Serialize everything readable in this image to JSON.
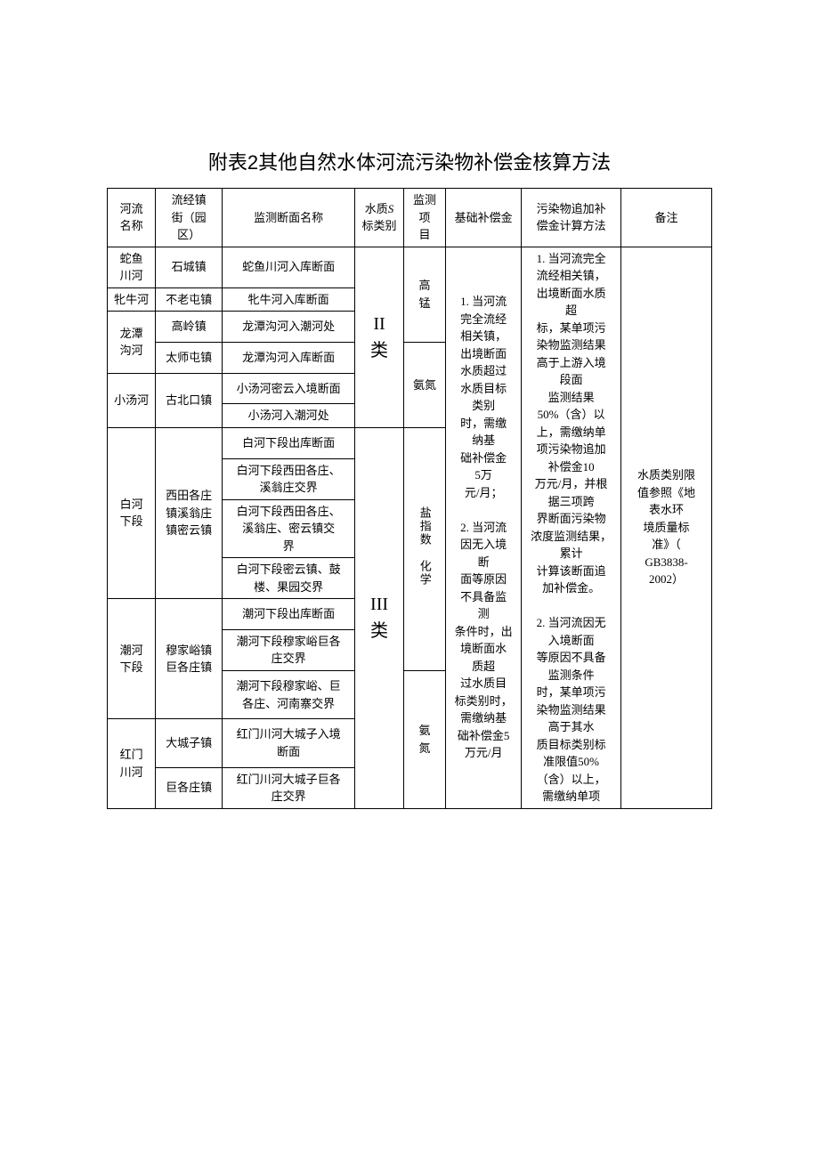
{
  "title": "附表2其他自然水体河流污染物补偿金核算方法",
  "columns": {
    "c1": "河流\n名称",
    "c2": "流经镇\n街（园\n区）",
    "c3": "监测断面名称",
    "c4_a": "水质",
    "c4_b": "S",
    "c4_c": "标类别",
    "c5": "监测项\n目",
    "c6": "基础补偿金",
    "c7": "污染物追加补\n偿金计算方法",
    "c8": "备注"
  },
  "river1": {
    "name": "蛇鱼\n川河",
    "town": "石城镇",
    "section": "蛇鱼川河入库断面"
  },
  "river2": {
    "name": "牝牛河",
    "town": "不老屯镇",
    "section": "牝牛河入库断面"
  },
  "river3": {
    "name": "龙潭\n沟河",
    "town_a": "高岭镇",
    "section_a": "龙潭沟河入潮河处",
    "town_b": "太师屯镇",
    "section_b": "龙潭沟河入库断面"
  },
  "river4": {
    "name": "小汤河",
    "town": "古北口镇",
    "section_a": "小汤河密云入境断面",
    "section_b": "小汤河入潮河处"
  },
  "river5": {
    "name": "白河\n下段",
    "town": "西田各庄\n镇溪翁庄\n镇密云镇",
    "section_a": "白河下段出库断面",
    "section_b": "白河下段西田各庄、\n溪翁庄交界",
    "section_c": "白河下段西田各庄、\n溪翁庄、密云镇交\n界",
    "section_d": "白河下段密云镇、鼓\n楼、果园交界"
  },
  "river6": {
    "name": "潮河\n下段",
    "town": "穆家峪镇\n巨各庄镇",
    "section_a": "潮河下段出库断面",
    "section_b": "潮河下段穆家峪巨各\n庄交界",
    "section_c": "潮河下段穆家峪、巨\n各庄、河南寨交界"
  },
  "river7": {
    "name": "红门\n川河",
    "town_a": "大城子镇",
    "section_a": "红门川河大城子入境\n断面",
    "town_b": "巨各庄镇",
    "section_b": "红门川河大城子巨各\n庄交界"
  },
  "wq": {
    "II": "II\n类",
    "III": "III\n类"
  },
  "monitor": {
    "gaomeng": "高\n锰",
    "andan": "氨氮",
    "yanzhishu_huaxue": "盐指数　化学",
    "andan2": "氨\n氮"
  },
  "base_comp": "1. 当河流\n完全流经\n相关镇，\n出境断面\n水质超过\n水质目标\n类别\n时，需缴\n纳基\n础补偿金\n5万\n元/月；\n\n2. 当河流\n因无入境\n断\n面等原因\n不具备监\n测\n条件时，出\n境断面水\n质超\n过水质目\n标类别时，\n需缴纳基\n础补偿金5\n万元/月",
  "add_comp": "1. 当河流完全\n流经相关镇，\n出境断面水质\n超\n标，某单项污\n染物监测结果\n高于上游入境\n段面\n监测结果\n50%（含）以\n上，需缴纳单\n项污染物追加\n补偿金10\n万元/月，并根\n据三项跨\n界断面污染物\n浓度监测结果，\n累计\n计算该断面追\n加补偿金。\n\n2. 当河流因无\n入境断面\n等原因不具备\n监测条件\n时，某单项污\n染物监测结果\n高于其水\n质目标类别标\n准限值50%\n（含）以上，\n需缴纳单项",
  "remark": "水质类别限\n值参照《地\n表水环\n境质量标\n准》（\nGB3838-\n2002）"
}
